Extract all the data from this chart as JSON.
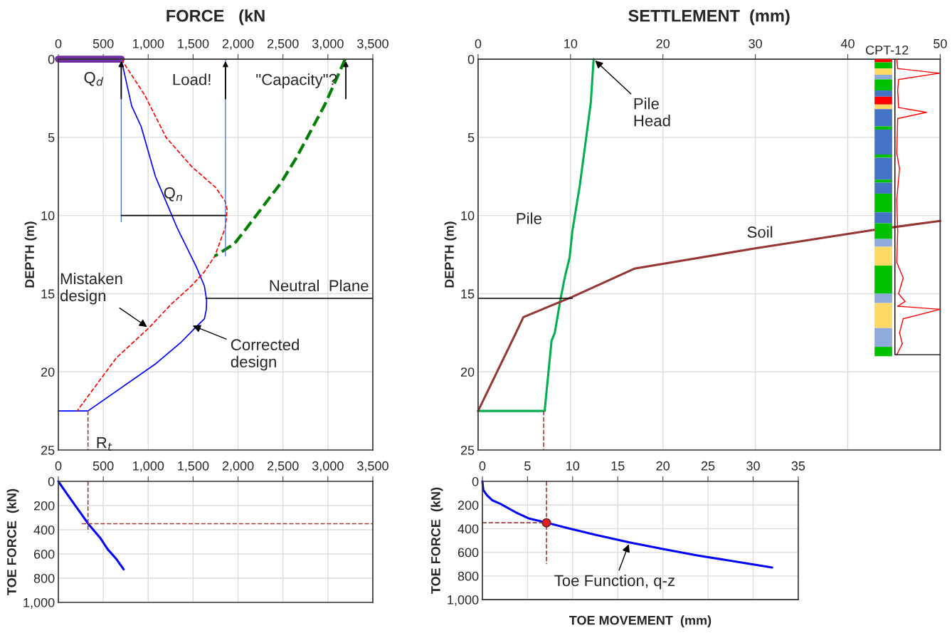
{
  "chart_data": [
    {
      "type": "line",
      "title": "FORCE   (kN",
      "ylabel": "DEPTH (m)",
      "xlim": [
        0,
        3500
      ],
      "xticks": [
        0,
        500,
        {
          "value": 1000,
          "label": "1,000"
        },
        {
          "value": 1500,
          "label": "1,500"
        },
        {
          "value": 2000,
          "label": "2,000"
        },
        {
          "value": 2500,
          "label": "2,500"
        },
        {
          "value": 3000,
          "label": "3,000"
        },
        {
          "value": 3500,
          "label": "3,500"
        }
      ],
      "ylim": [
        25,
        0
      ],
      "yticks": [
        0,
        5,
        10,
        15,
        20,
        25
      ],
      "grid": true,
      "series": [
        {
          "color": "#7030a0",
          "x": [
            0,
            700
          ],
          "values": [
            0,
            0
          ]
        },
        {
          "color": "#0000ff",
          "x": [
            700,
            816,
            921,
            1080,
            1264,
            1323,
            1537,
            1625,
            1650,
            1647,
            1626,
            1537,
            1367,
            1079,
            330,
            0
          ],
          "values": [
            0,
            3.0,
            4.3,
            7.5,
            10.0,
            10.8,
            13.3,
            14.5,
            15.4,
            16.0,
            16.6,
            17.1,
            18.1,
            19.5,
            22.5,
            22.5
          ]
        },
        {
          "color": "#ff0000",
          "line_style": "dashed",
          "x": [
            700,
            961,
            1198,
            1489,
            1750,
            1857,
            1878,
            1870,
            1856,
            1741,
            1625,
            1481,
            1251,
            1006,
            646,
            209
          ],
          "values": [
            0,
            2.3,
            5.0,
            6.9,
            8.2,
            9.1,
            9.6,
            10.2,
            10.8,
            12.6,
            13.6,
            14.5,
            15.7,
            17.2,
            19.1,
            22.5
          ]
        },
        {
          "color": "#008000",
          "line_style": "dashed",
          "x": [
            3192,
            3100,
            2967,
            2809,
            2650,
            2479,
            2294,
            2096,
            1960,
            1741
          ],
          "values": [
            0,
            1.2,
            2.9,
            4.6,
            6.3,
            7.9,
            9.3,
            10.8,
            11.8,
            12.6
          ]
        },
        {
          "color": "#4472c4",
          "x": [
            700,
            700
          ],
          "values": [
            0,
            10.4
          ]
        },
        {
          "color": "#4472c4",
          "x": [
            1860,
            1860
          ],
          "values": [
            0,
            12.6
          ]
        },
        {
          "color": "#000000",
          "x": [
            700,
            1860
          ],
          "values": [
            10,
            10
          ]
        },
        {
          "color": "#000000",
          "x": [
            1640,
            3500
          ],
          "values": [
            15.3,
            15.3
          ]
        },
        {
          "color": "#a0403c",
          "line_style": "dashed",
          "x": [
            330,
            330
          ],
          "values": [
            22.5,
            25
          ]
        }
      ],
      "annotations": [
        {
          "text": "Q$_{d}$",
          "x": 700,
          "y": 0
        },
        {
          "text": "Load!",
          "x": 1860,
          "y": 0
        },
        {
          "text": "\"Capacity\"?",
          "x": 3200,
          "y": 0
        },
        {
          "text": "Q$_{n}$",
          "x": 1280,
          "y": 10
        },
        {
          "text": "Mistaken\ndesign",
          "x": 1006,
          "y": 17.2
        },
        {
          "text": "Corrected\ndesign",
          "x": 1475,
          "y": 17.0
        },
        {
          "text": "Neutral  Plane",
          "x": 2900,
          "y": 15.3
        },
        {
          "text": "R$_{t}$",
          "x": 330,
          "y": 22.5
        }
      ]
    },
    {
      "type": "line",
      "title": "SETTLEMENT  (mm)",
      "ylabel": "DEPTH (m)",
      "xlim": [
        0,
        50
      ],
      "xticks": [
        0,
        10,
        20,
        30,
        40,
        50
      ],
      "ylim": [
        25,
        0
      ],
      "yticks": [
        0,
        5,
        10,
        15,
        20,
        25
      ],
      "grid": true,
      "series": [
        {
          "color": "#00b050",
          "x": [
            12.5,
            12.2,
            11.7,
            11.0,
            10.2,
            9.9,
            9.4,
            8.9,
            8.3,
            7.95,
            7.2,
            0
          ],
          "values": [
            0,
            2.75,
            5.0,
            8.1,
            11.0,
            12.7,
            13.9,
            15.4,
            17.5,
            18.0,
            22.5,
            22.5
          ]
        },
        {
          "color": "#953735",
          "x": [
            0,
            4.1,
            4.9,
            10.2,
            16.9,
            30.0,
            43.0,
            50
          ],
          "values": [
            22.5,
            17.5,
            16.5,
            15.2,
            13.4,
            12.1,
            10.9,
            10.35
          ]
        },
        {
          "color": "#000000",
          "x": [
            0,
            10.2
          ],
          "values": [
            15.3,
            15.3
          ]
        },
        {
          "color": "#a0403c",
          "line_style": "dashed",
          "x": [
            7.1,
            7.1
          ],
          "values": [
            22.5,
            25
          ]
        }
      ],
      "annotations": [
        {
          "text": "Pile\nHead",
          "x": 12.5,
          "y": 0
        },
        "Pile",
        {
          "text": "Soil",
          "x": 30.5,
          "y": 12.0
        },
        "CPT-12"
      ]
    },
    {
      "type": "line",
      "ylabel": "TOE FORCE  (kN)",
      "xlim": [
        0,
        3500
      ],
      "xticks": [
        0,
        500,
        {
          "value": 1000,
          "label": "1,000"
        },
        {
          "value": 1500,
          "label": "1,500"
        },
        {
          "value": 2000,
          "label": "2,000"
        },
        {
          "value": 2500,
          "label": "2,500"
        },
        {
          "value": 3000,
          "label": "3,000"
        },
        {
          "value": 3500,
          "label": "3,500"
        }
      ],
      "ylim": [
        1000,
        0
      ],
      "yticks": [
        0,
        200,
        400,
        600,
        800,
        {
          "value": 1000,
          "label": "1,000"
        }
      ],
      "grid": true,
      "series": [
        {
          "color": "#0000ff",
          "x": [
            0,
            103,
            247,
            333,
            463,
            549,
            650,
            727
          ],
          "values": [
            0,
            111,
            261,
            351,
            464,
            561,
            646,
            727
          ]
        },
        {
          "color": "#a0403c",
          "line_style": "dashed",
          "x": [
            330,
            330
          ],
          "values": [
            0,
            420
          ]
        },
        {
          "color": "#a0403c",
          "line_style": "dashed",
          "x": [
            260,
            3500
          ],
          "values": [
            350,
            350
          ]
        }
      ]
    },
    {
      "type": "line",
      "xlabel": "TOE MOVEMENT  (mm)",
      "ylabel": "TOE FORCE  (kN)",
      "xlim": [
        0,
        35
      ],
      "xticks": [
        0,
        5,
        10,
        15,
        20,
        25,
        30,
        35
      ],
      "ylim": [
        1000,
        0
      ],
      "yticks": [
        0,
        200,
        400,
        600,
        800,
        {
          "value": 1000,
          "label": "1,000"
        }
      ],
      "grid": true,
      "series": [
        {
          "color": "#0000ff",
          "x": [
            0,
            0.1,
            0.5,
            1.1,
            2.0,
            3.7,
            5.2,
            7.0,
            9.4,
            12.5,
            16.3,
            20.1,
            23.9,
            28.1,
            32.1
          ],
          "values": [
            0,
            73,
            117,
            160,
            190,
            262,
            315,
            347,
            394,
            452,
            516,
            574,
            627,
            679,
            729
          ]
        },
        {
          "color": "#a0403c",
          "line_style": "dashed",
          "x": [
            7.1,
            7.1
          ],
          "values": [
            0,
            700
          ]
        },
        {
          "color": "#a0403c",
          "line_style": "dashed",
          "x": [
            0,
            7.1
          ],
          "values": [
            350,
            350
          ]
        },
        {
          "type": "scatter",
          "color": "#e02020",
          "marker": "circle",
          "x": [
            7.1
          ],
          "values": [
            350
          ]
        }
      ],
      "annotations": [
        {
          "text": "Toe Function, q-z",
          "x": 16.3,
          "y": 516
        }
      ]
    }
  ]
}
